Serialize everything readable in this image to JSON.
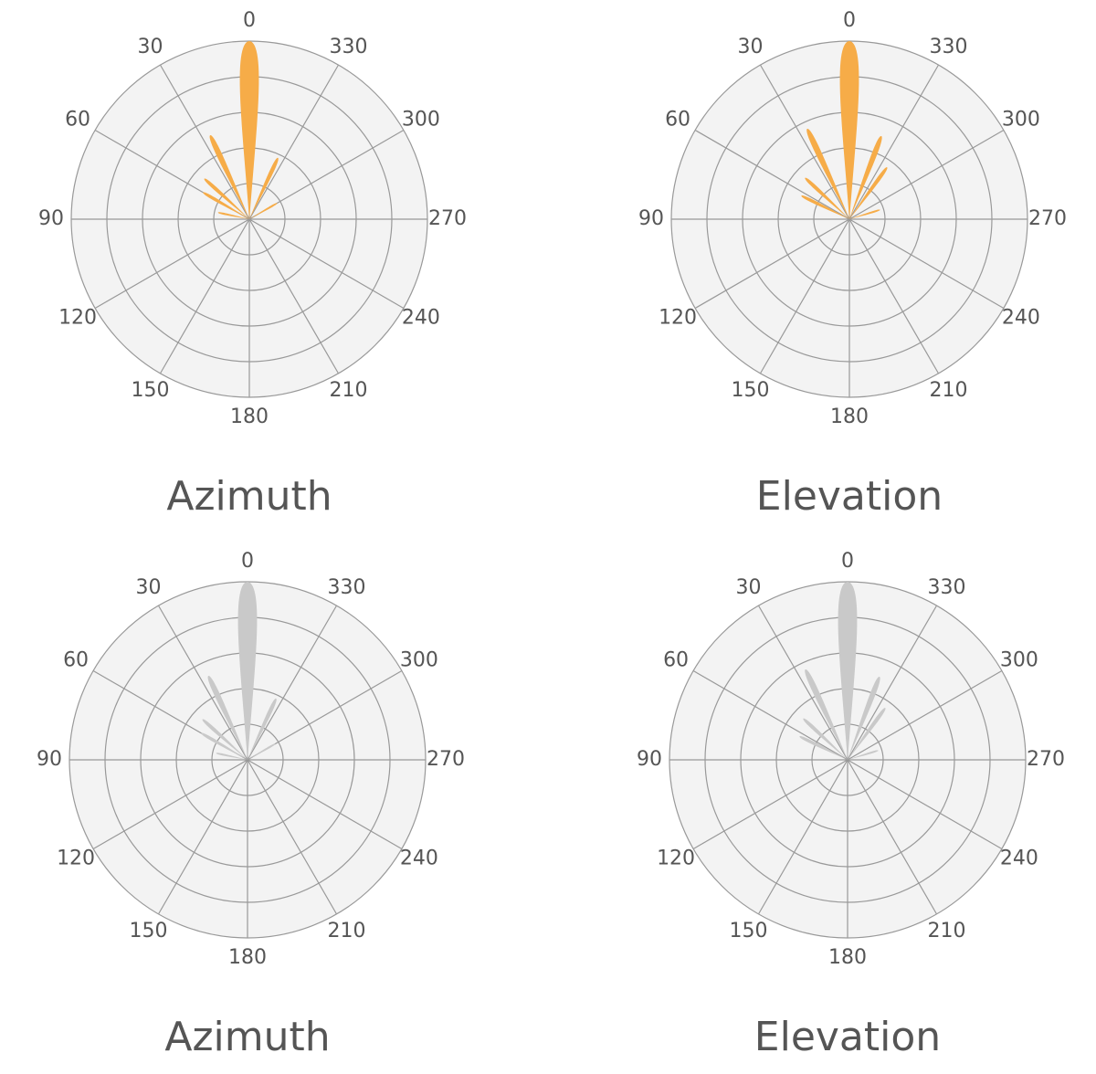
{
  "chart_data": [
    {
      "type": "polar",
      "title": "Azimuth",
      "color": "#f6ac48",
      "rlim": [
        0,
        5
      ],
      "rings": 5,
      "thetaticks": [
        0,
        30,
        60,
        90,
        120,
        150,
        180,
        210,
        240,
        270,
        300,
        330
      ],
      "angles": [
        0,
        25,
        48,
        60,
        78,
        335,
        300
      ],
      "values": [
        5.0,
        2.6,
        1.7,
        1.5,
        0.9,
        1.9,
        0.9
      ]
    },
    {
      "type": "polar",
      "title": "Elevation",
      "color": "#f6ac48",
      "rlim": [
        0,
        5
      ],
      "rings": 5,
      "thetaticks": [
        0,
        30,
        60,
        90,
        120,
        150,
        180,
        210,
        240,
        270,
        300,
        330
      ],
      "angles": [
        0,
        25,
        47,
        64,
        339,
        324,
        287
      ],
      "values": [
        5.0,
        2.8,
        1.7,
        1.5,
        2.5,
        1.8,
        0.9
      ]
    },
    {
      "type": "polar",
      "title": "Azimuth",
      "color": "#c9c9c9",
      "rlim": [
        0,
        5
      ],
      "rings": 5,
      "thetaticks": [
        0,
        30,
        60,
        90,
        120,
        150,
        180,
        210,
        240,
        270,
        300,
        330
      ],
      "angles": [
        0,
        25,
        48,
        60,
        78,
        335,
        300
      ],
      "values": [
        5.0,
        2.6,
        1.7,
        1.5,
        0.9,
        1.9,
        0.9
      ]
    },
    {
      "type": "polar",
      "title": "Elevation",
      "color": "#c9c9c9",
      "rlim": [
        0,
        5
      ],
      "rings": 5,
      "thetaticks": [
        0,
        30,
        60,
        90,
        120,
        150,
        180,
        210,
        240,
        270,
        300,
        330
      ],
      "angles": [
        0,
        25,
        47,
        64,
        339,
        324,
        287
      ],
      "values": [
        5.0,
        2.8,
        1.7,
        1.5,
        2.5,
        1.8,
        0.9
      ]
    }
  ]
}
